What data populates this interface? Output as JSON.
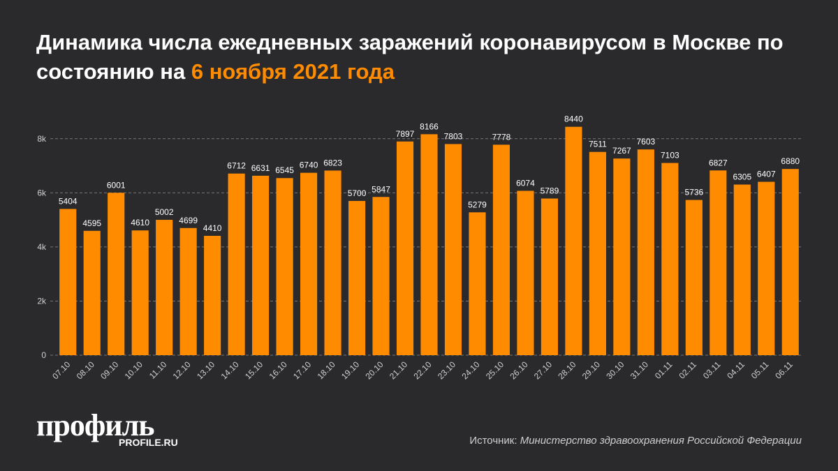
{
  "chart_data": {
    "type": "bar",
    "title": "Динамика числа ежедневных заражений коронавирусом в Москве по состоянию на",
    "title_date": "6 ноября 2021 года",
    "categories": [
      "07.10",
      "08.10",
      "09.10",
      "10.10",
      "11.10",
      "12.10",
      "13.10",
      "14.10",
      "15.10",
      "16.10",
      "17.10",
      "18.10",
      "19.10",
      "20.10",
      "21.10",
      "22.10",
      "23.10",
      "24.10",
      "25.10",
      "26.10",
      "27.10",
      "28.10",
      "29.10",
      "30.10",
      "31.10",
      "01.11",
      "02.11",
      "03.11",
      "04.11",
      "05.11",
      "06.11"
    ],
    "values": [
      5404,
      4595,
      6001,
      4610,
      5002,
      4699,
      4410,
      6712,
      6631,
      6545,
      6740,
      6823,
      5700,
      5847,
      7897,
      8166,
      7803,
      5279,
      7778,
      6074,
      5789,
      8440,
      7511,
      7267,
      7603,
      7103,
      5736,
      6827,
      6305,
      6407,
      6880
    ],
    "color": "#ff8c00",
    "ylim": [
      0,
      9000
    ],
    "yticks": [
      0,
      {
        "value": 2000,
        "label": "2k"
      },
      {
        "value": 4000,
        "label": "4k"
      },
      {
        "value": 6000,
        "label": "6k"
      },
      {
        "value": 8000,
        "label": "8k"
      }
    ],
    "grid": true,
    "source_label": "Источник:",
    "source": "Министерство здравоохранения Российской Федерации"
  },
  "logo": {
    "name": "профиль",
    "url": "PROFILE.RU"
  }
}
